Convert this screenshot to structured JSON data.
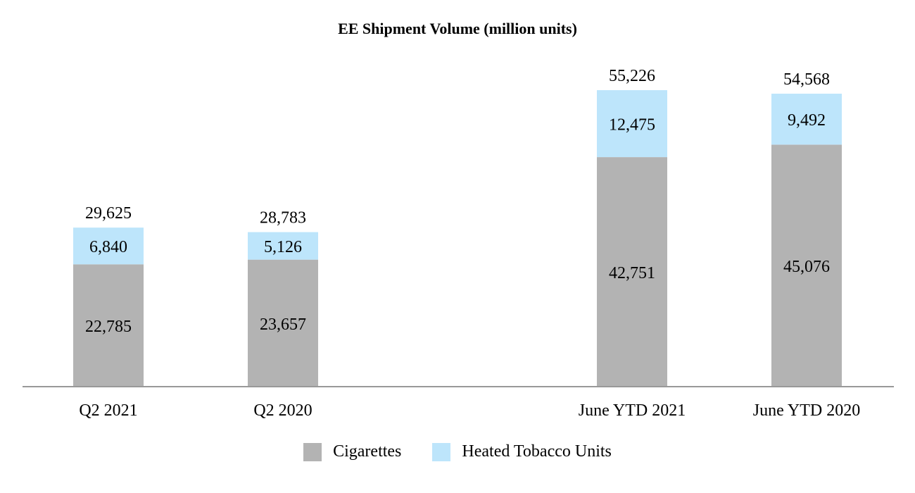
{
  "chart_data": {
    "type": "bar",
    "stacked": true,
    "title": "EE Shipment Volume (million units)",
    "categories": [
      "Q2 2021",
      "Q2 2020",
      "June YTD 2021",
      "June YTD 2020"
    ],
    "series": [
      {
        "name": "Cigarettes",
        "color": "#b3b3b3",
        "values": [
          22785,
          23657,
          42751,
          45076
        ],
        "labels": [
          "22,785",
          "23,657",
          "42,751",
          "45,076"
        ]
      },
      {
        "name": "Heated Tobacco Units",
        "color": "#bde5fb",
        "values": [
          6840,
          5126,
          12475,
          9492
        ],
        "labels": [
          "6,840",
          "5,126",
          "12,475",
          "9,492"
        ]
      }
    ],
    "totals": [
      29625,
      28783,
      55226,
      54568
    ],
    "total_labels": [
      "29,625",
      "28,783",
      "55,226",
      "54,568"
    ],
    "ylim": [
      0,
      60000
    ],
    "grid": false,
    "legend_position": "bottom",
    "axis_color": "#999999"
  }
}
